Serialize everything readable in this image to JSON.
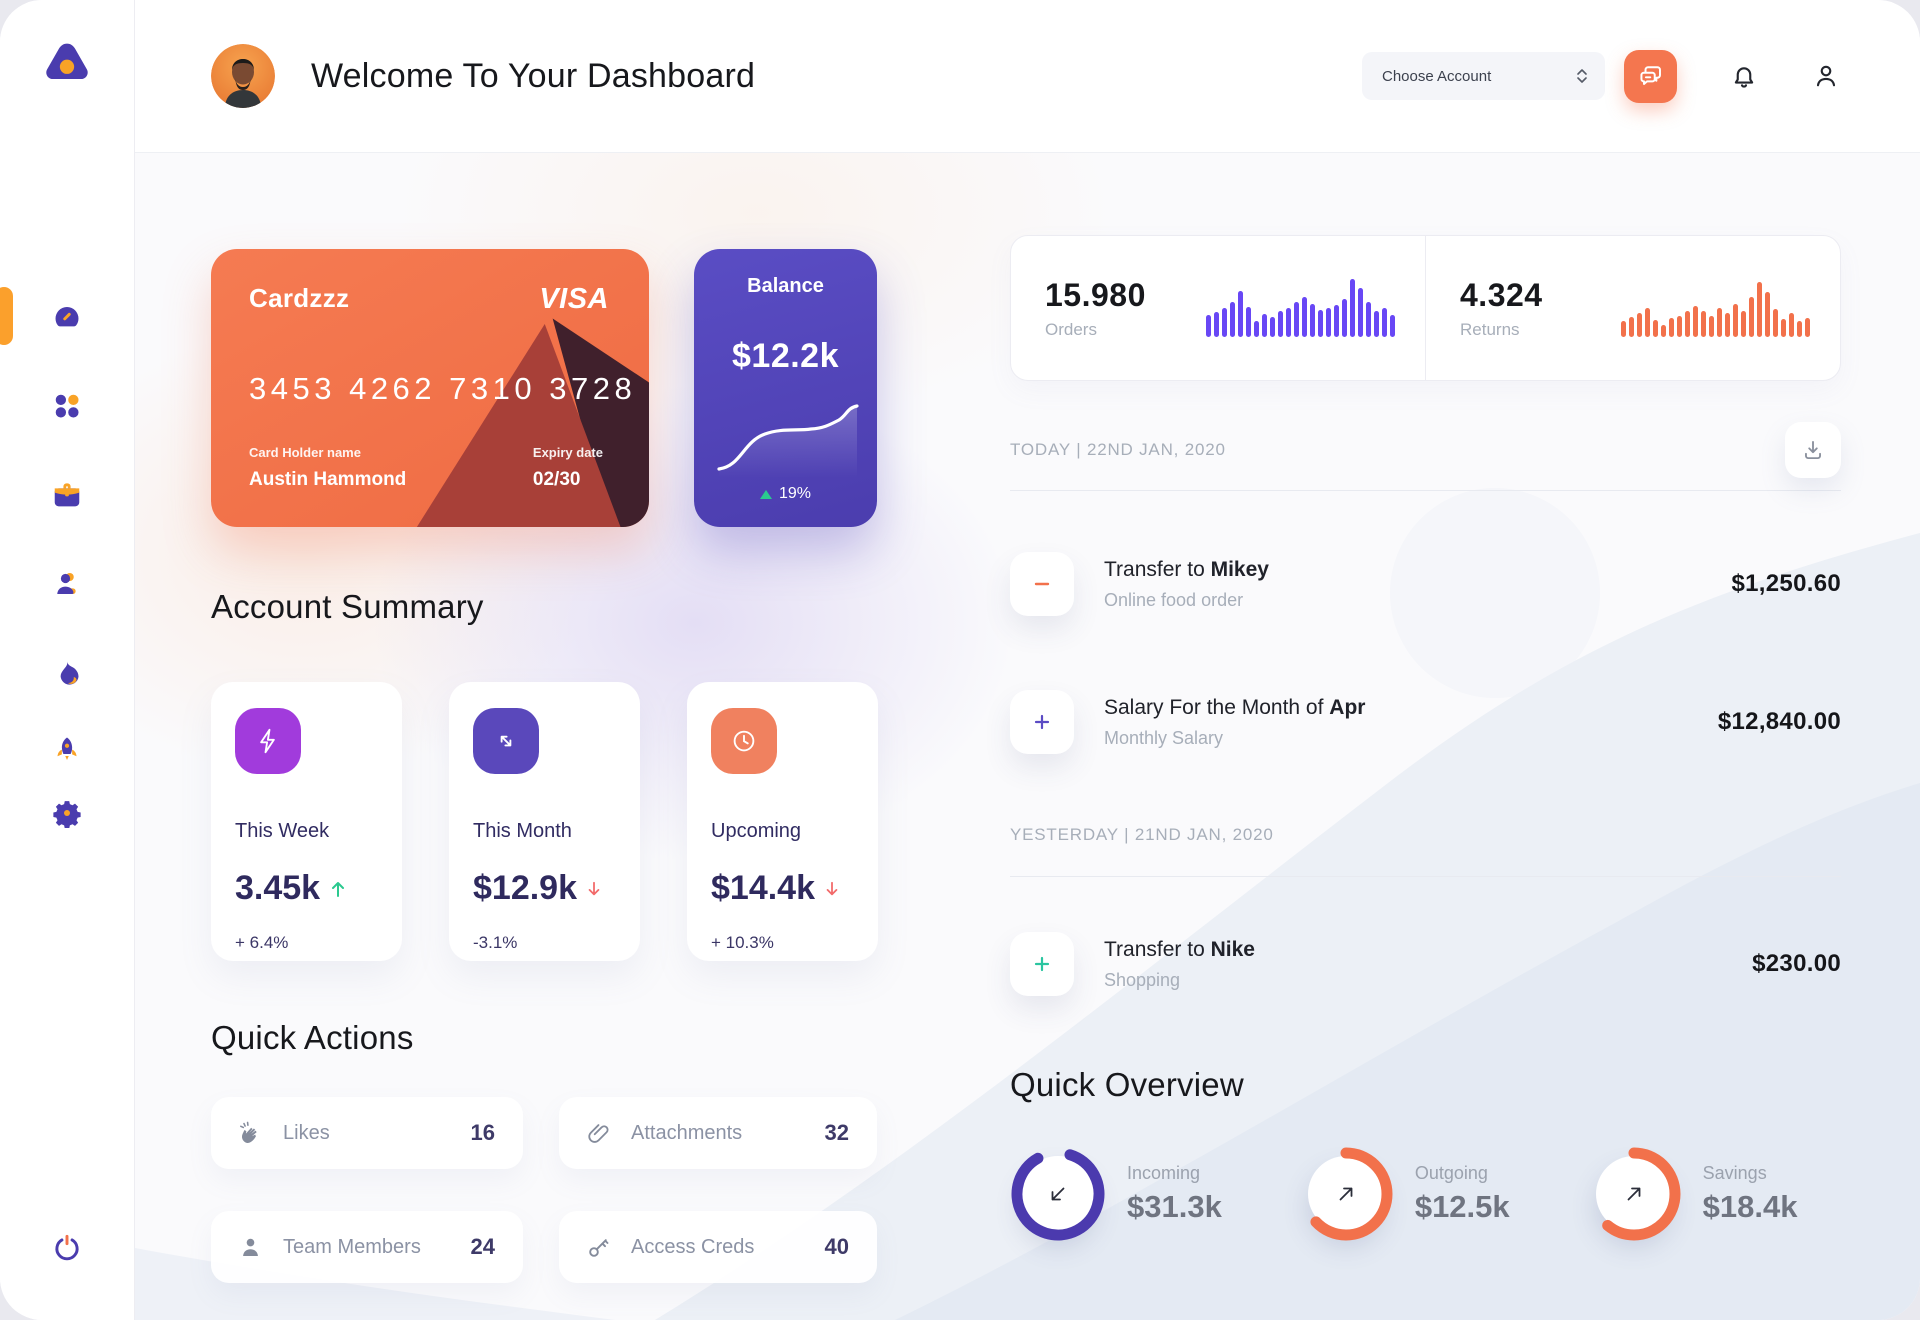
{
  "header": {
    "title": "Welcome To Your Dashboard",
    "account_select_label": "Choose Account"
  },
  "sidebar": {
    "items": [
      {
        "name": "dashboard",
        "active": true
      },
      {
        "name": "apps",
        "active": false
      },
      {
        "name": "work",
        "active": false
      },
      {
        "name": "team",
        "active": false
      },
      {
        "name": "trending",
        "active": false
      },
      {
        "name": "launch",
        "active": false
      },
      {
        "name": "settings",
        "active": false
      }
    ]
  },
  "credit_card": {
    "name": "Cardzzz",
    "brand": "VISA",
    "number": "3453 4262 7310 3728",
    "holder_label": "Card Holder name",
    "holder": "Austin Hammond",
    "expiry_label": "Expiry date",
    "expiry": "02/30"
  },
  "balance_card": {
    "title": "Balance",
    "value": "$12.2k",
    "delta": "19%"
  },
  "account_summary": {
    "title": "Account Summary",
    "cards": [
      {
        "label": "This Week",
        "value": "3.45k",
        "delta": "+ 6.4%",
        "trend": "up",
        "icon": "lightning",
        "icon_color": "#A13BDC"
      },
      {
        "label": "This Month",
        "value": "$12.9k",
        "delta": "-3.1%",
        "trend": "down",
        "icon": "diagonal-arrows",
        "icon_color": "#5A48BB"
      },
      {
        "label": "Upcoming",
        "value": "$14.4k",
        "delta": "+ 10.3%",
        "trend": "down",
        "icon": "clock",
        "icon_color": "#F0815F"
      }
    ]
  },
  "quick_actions": {
    "title": "Quick Actions",
    "items": [
      {
        "label": "Likes",
        "count": "16",
        "icon": "clap"
      },
      {
        "label": "Attachments",
        "count": "32",
        "icon": "paperclip"
      },
      {
        "label": "Team Members",
        "count": "24",
        "icon": "user"
      },
      {
        "label": "Access Creds",
        "count": "40",
        "icon": "key"
      }
    ]
  },
  "stats": {
    "orders": {
      "value": "15.980",
      "label": "Orders",
      "color": "#6847F5",
      "bars": [
        22,
        25,
        29,
        35,
        46,
        30,
        16,
        23,
        20,
        26,
        29,
        35,
        40,
        33,
        27,
        29,
        32,
        38,
        58,
        49,
        35,
        26,
        29,
        22
      ]
    },
    "returns": {
      "value": "4.324",
      "label": "Returns",
      "color": "#F2714B",
      "bars": [
        16,
        20,
        24,
        29,
        17,
        12,
        19,
        21,
        26,
        31,
        26,
        21,
        29,
        24,
        33,
        26,
        40,
        55,
        45,
        28,
        18,
        24,
        16,
        19
      ]
    }
  },
  "transactions": {
    "groups": [
      {
        "date_label": "TODAY | 22ND JAN, 2020"
      },
      {
        "date_label": "YESTERDAY | 21ND JAN, 2020"
      }
    ],
    "rows": [
      {
        "title_prefix": "Transfer to ",
        "title_bold": "Mikey",
        "subtitle": "Online food order",
        "amount": "$1,250.60",
        "sign": "minus",
        "sign_color": "#F2714B"
      },
      {
        "title_prefix": "Salary For the Month of ",
        "title_bold": "Apr",
        "subtitle": "Monthly Salary",
        "amount": "$12,840.00",
        "sign": "plus",
        "sign_color": "#5B4BC4"
      },
      {
        "title_prefix": "Transfer to ",
        "title_bold": "Nike",
        "subtitle": "Shopping",
        "amount": "$230.00",
        "sign": "plus",
        "sign_color": "#2BC5A0"
      }
    ]
  },
  "quick_overview": {
    "title": "Quick Overview",
    "rings": [
      {
        "label": "Incoming",
        "value": "$31.3k",
        "pct": 87,
        "color": "#4B3AAE",
        "direction": "in"
      },
      {
        "label": "Outgoing",
        "value": "$12.5k",
        "pct": 63,
        "color": "#F2714B",
        "direction": "out"
      },
      {
        "label": "Savings",
        "value": "$18.4k",
        "pct": 61,
        "color": "#F2714B",
        "direction": "out"
      }
    ]
  },
  "colors": {
    "accent_orange": "#F2714B",
    "amber": "#F9A326",
    "purple": "#4B3AAE",
    "chart_purple": "#6847F5",
    "green": "#2BC98F",
    "red": "#F26A6A"
  }
}
